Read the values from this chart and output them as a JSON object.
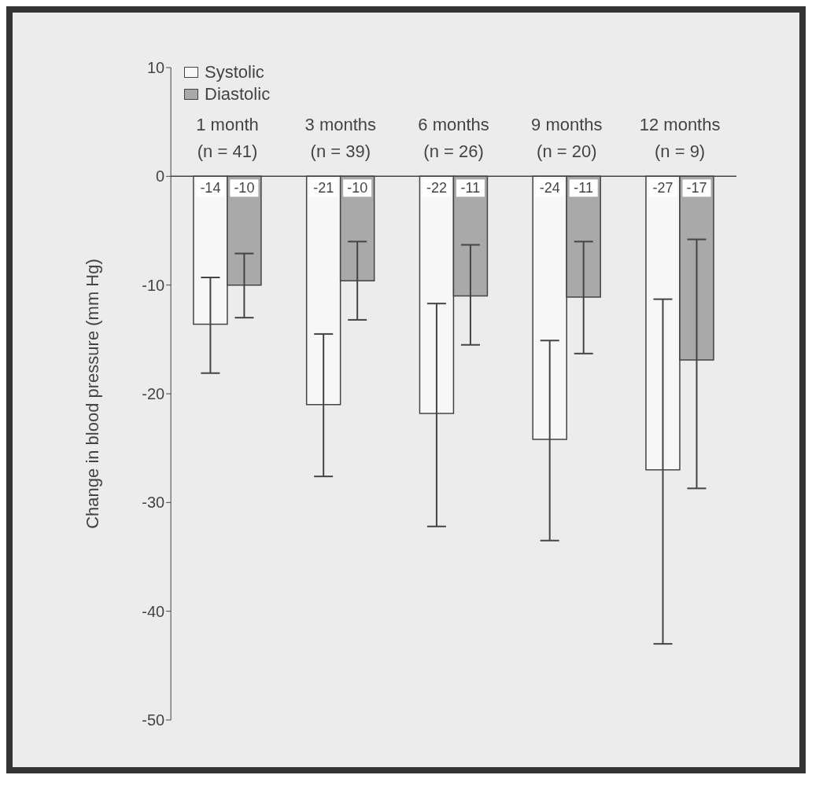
{
  "chart_data": {
    "type": "bar",
    "ylabel": "Change in blood pressure (mm Hg)",
    "categories": [
      "1 month\n(n = 41)",
      "3 months\n(n = 39)",
      "6 months\n(n = 26)",
      "9 months\n(n = 20)",
      "12 months\n(n = 9)"
    ],
    "series": [
      {
        "name": "Systolic",
        "color": "#f7f7f7",
        "values": [
          -13.6,
          -21.0,
          -21.8,
          -24.2,
          -27.0
        ],
        "value_labels": [
          "-14",
          "-21",
          "-22",
          "-24",
          "-27"
        ],
        "errors": [
          [
            -18.1,
            -9.3
          ],
          [
            -27.6,
            -14.5
          ],
          [
            -32.2,
            -11.7
          ],
          [
            -33.5,
            -15.1
          ],
          [
            -43.0,
            -11.3
          ]
        ]
      },
      {
        "name": "Diastolic",
        "color": "#a9a9a9",
        "values": [
          -10.0,
          -9.6,
          -11.0,
          -11.1,
          -16.9
        ],
        "value_labels": [
          "-10",
          "-10",
          "-11",
          "-11",
          "-17"
        ],
        "errors": [
          [
            -13.0,
            -7.1
          ],
          [
            -13.2,
            -6.0
          ],
          [
            -15.5,
            -6.3
          ],
          [
            -16.3,
            -6.0
          ],
          [
            -28.7,
            -5.8
          ]
        ]
      }
    ],
    "ylim": [
      -50,
      10
    ],
    "yticks": [
      -50,
      -40,
      -30,
      -20,
      -10,
      0,
      10
    ],
    "grid": false,
    "legend": "top left"
  }
}
